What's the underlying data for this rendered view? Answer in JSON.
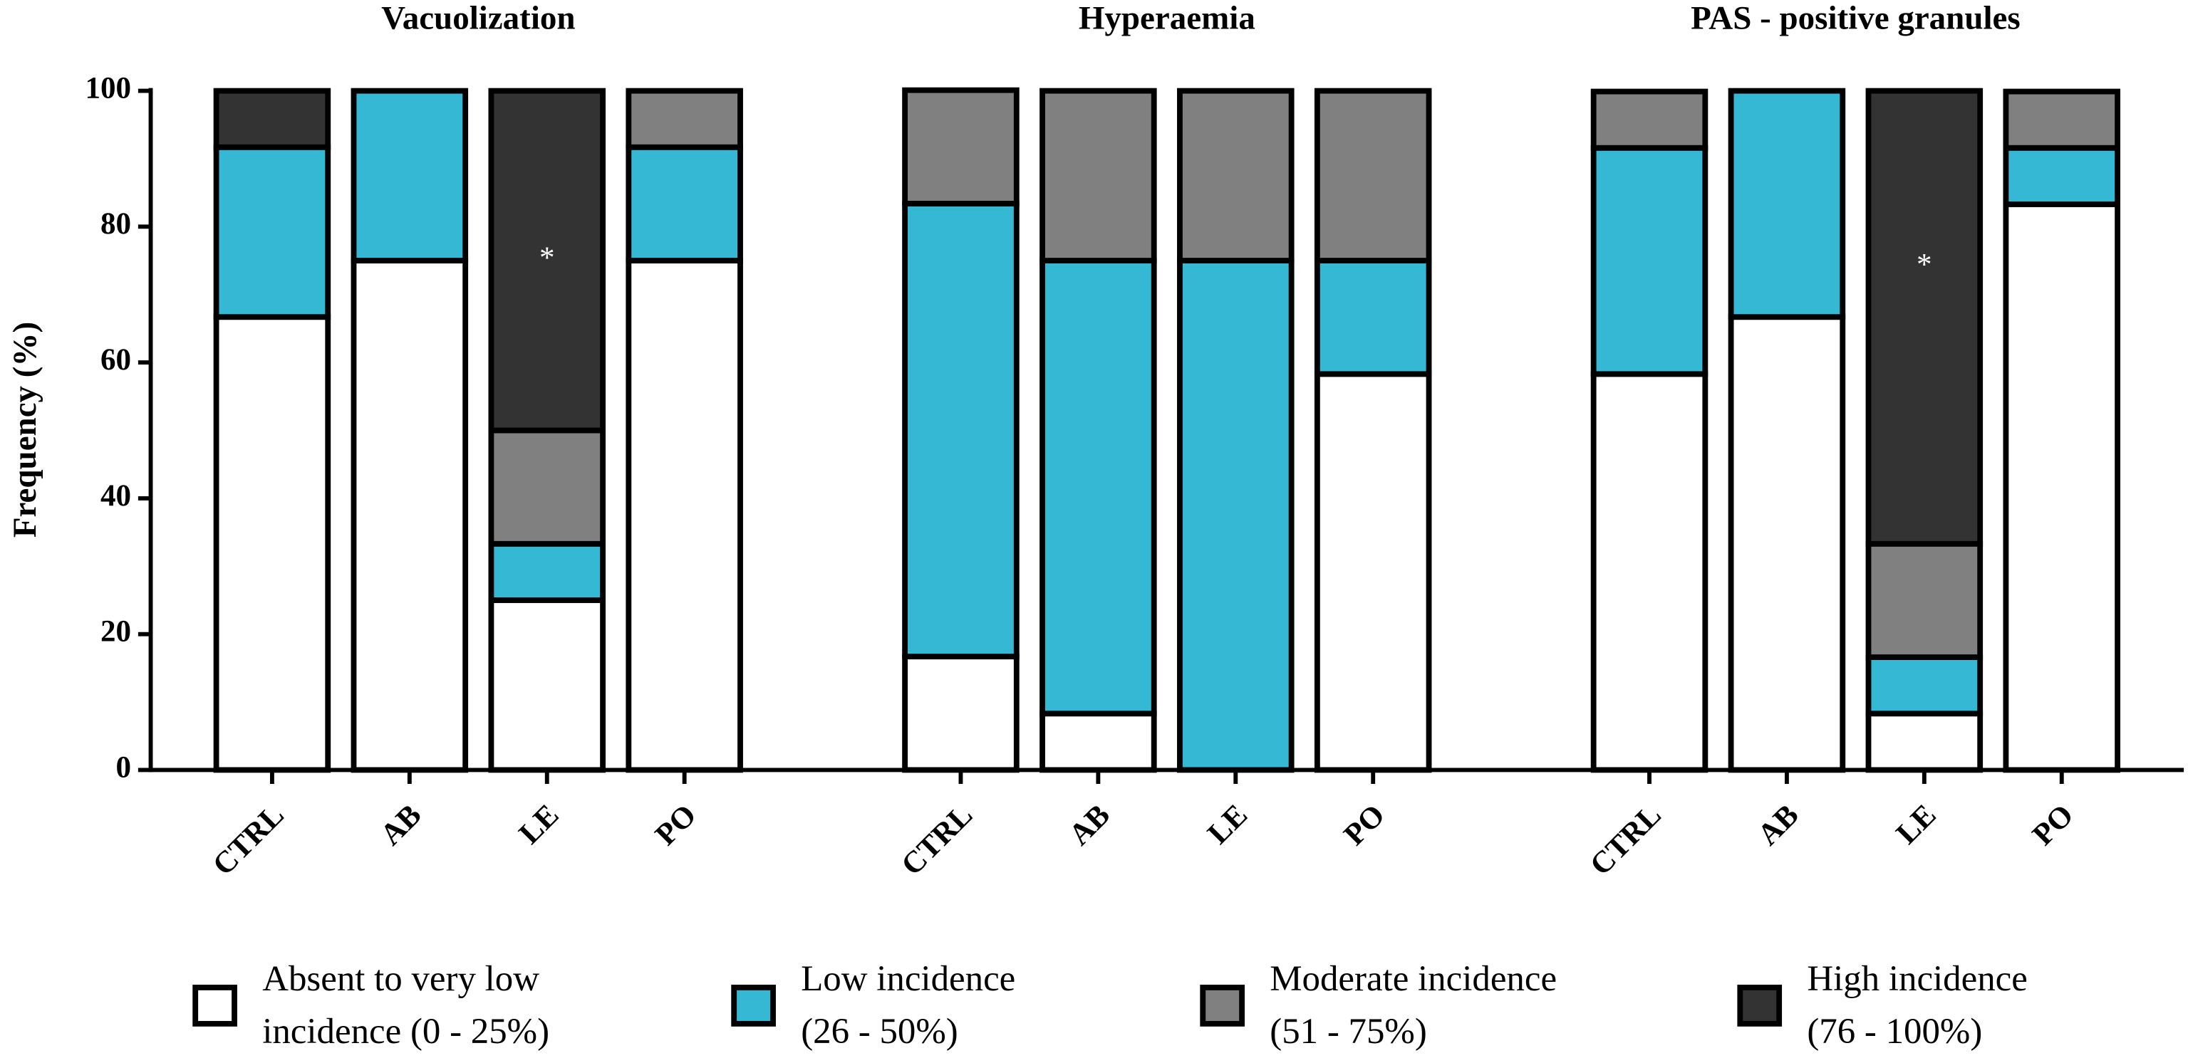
{
  "chart_data": {
    "type": "stacked_bar",
    "ylabel": "Frequency (%)",
    "ylim": [
      0,
      100
    ],
    "yticks": [
      0,
      20,
      40,
      60,
      80,
      100
    ],
    "series": [
      {
        "name": [
          "Absent to very low",
          "incidence (0 - 25%)"
        ],
        "color": "#ffffff"
      },
      {
        "name": [
          "Low incidence",
          "(26 - 50%)"
        ],
        "color": "#35b8d3"
      },
      {
        "name": [
          "Moderate incidence",
          "(51 - 75%)"
        ],
        "color": "#808080"
      },
      {
        "name": [
          "High incidence",
          "(76 - 100%)"
        ],
        "color": "#333333"
      }
    ],
    "panels": [
      {
        "title": "Vacuolization",
        "categories": [
          "CTRL",
          "AB",
          "LE",
          "PO"
        ],
        "values": [
          [
            66.7,
            75,
            25,
            75
          ],
          [
            25,
            25,
            8.3,
            16.7
          ],
          [
            0,
            0,
            16.7,
            8.3
          ],
          [
            8.3,
            0,
            50,
            0
          ]
        ],
        "annotations": [
          {
            "text": "*",
            "category": 2,
            "y": 75
          }
        ]
      },
      {
        "title": "Hyperaemia",
        "categories": [
          "CTRL",
          "AB",
          "LE",
          "PO"
        ],
        "values": [
          [
            16.7,
            8.3,
            0,
            58.3
          ],
          [
            66.7,
            66.7,
            75,
            16.7
          ],
          [
            16.7,
            25,
            25,
            25
          ],
          [
            0,
            0,
            0,
            0
          ]
        ],
        "annotations": []
      },
      {
        "title": "PAS - positive granules",
        "categories": [
          "CTRL",
          "AB",
          "LE",
          "PO"
        ],
        "values": [
          [
            58.3,
            66.7,
            8.3,
            83.3
          ],
          [
            33.3,
            33.3,
            8.3,
            8.3
          ],
          [
            8.3,
            0,
            16.7,
            8.3
          ],
          [
            0,
            0,
            66.7,
            0
          ]
        ],
        "annotations": [
          {
            "text": "*",
            "category": 2,
            "y": 74
          }
        ]
      }
    ]
  }
}
